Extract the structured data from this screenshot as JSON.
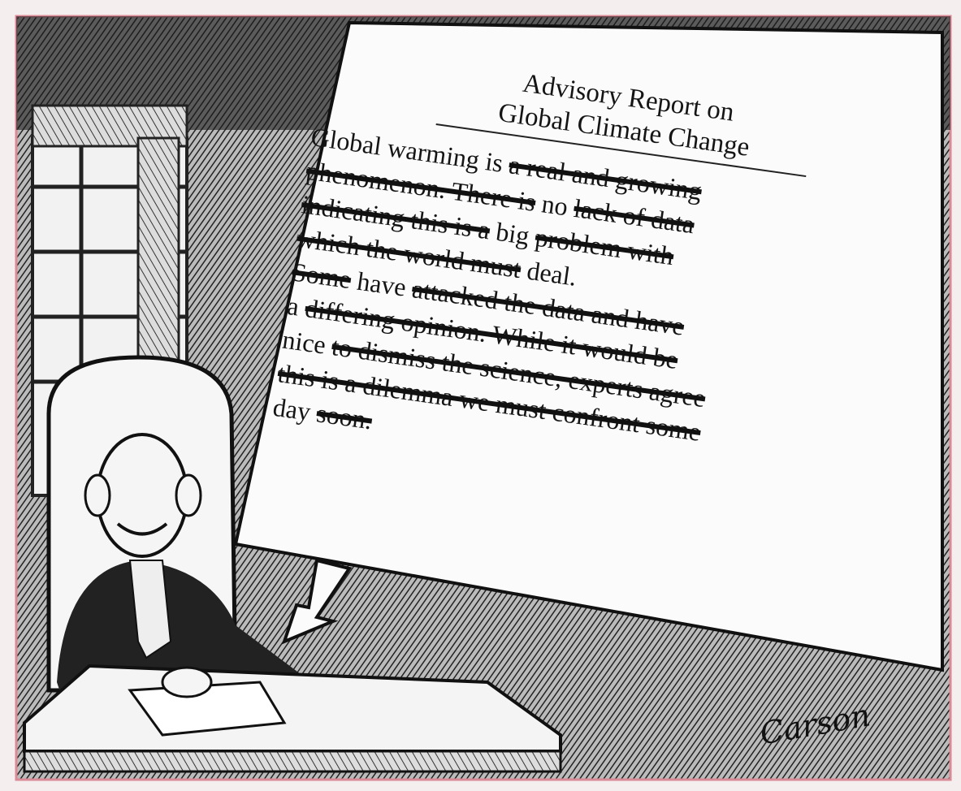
{
  "report": {
    "title_lines": [
      "Advisory Report on",
      "Global Climate Change"
    ],
    "lines": [
      [
        {
          "text": "Global warming is ",
          "struck": false
        },
        {
          "text": "a real and growing",
          "struck": true
        }
      ],
      [
        {
          "text": "phenomenon. There is",
          "struck": true
        },
        {
          "text": " no ",
          "struck": false
        },
        {
          "text": "lack of data",
          "struck": true
        }
      ],
      [
        {
          "text": "indicating this is a",
          "struck": true
        },
        {
          "text": " big ",
          "struck": false
        },
        {
          "text": "problem with",
          "struck": true
        }
      ],
      [
        {
          "text": "which the world must",
          "struck": true
        },
        {
          "text": " deal.",
          "struck": false
        }
      ],
      [
        {
          "text": "Some",
          "struck": true
        },
        {
          "text": " have ",
          "struck": false
        },
        {
          "text": "attacked the data and have",
          "struck": true
        }
      ],
      [
        {
          "text": "a ",
          "struck": false
        },
        {
          "text": "differing opinion. While it would be",
          "struck": true
        }
      ],
      [
        {
          "text": "nice ",
          "struck": false
        },
        {
          "text": "to dismiss the science, experts agree",
          "struck": true
        }
      ],
      [
        {
          "text": "this is a dilemma we must confront some",
          "struck": true
        }
      ],
      [
        {
          "text": "day ",
          "struck": false
        },
        {
          "text": "soon.",
          "struck": true
        }
      ]
    ]
  },
  "signature": "Carson"
}
